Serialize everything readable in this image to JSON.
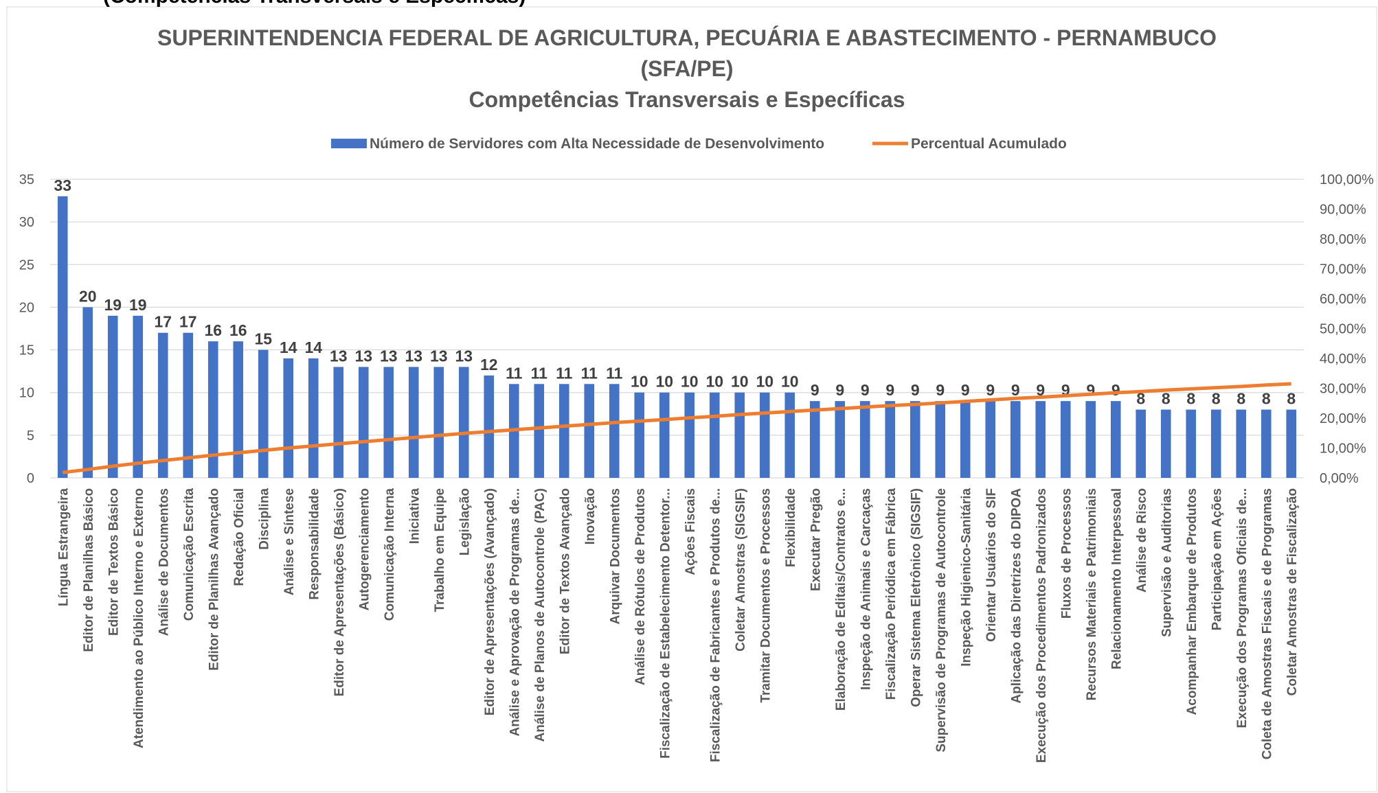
{
  "heading": "(Competências Transversais e Específicas)",
  "chart_data": {
    "type": "bar_line",
    "title_lines": [
      "SUPERINTENDENCIA FEDERAL DE AGRICULTURA, PECUÁRIA E ABASTECIMENTO - PERNAMBUCO",
      "(SFA/PE)",
      "Competências Transversais e Específicas"
    ],
    "categories": [
      "Língua Estrangeira",
      "Editor de Planilhas Básico",
      "Editor de Textos Básico",
      "Atendimento ao Público Interno e Externo",
      "Análise de Documentos",
      "Comunicação Escrita",
      "Editor de Planilhas Avançado",
      "Redação Oficial",
      "Disciplina",
      "Análise e Síntese",
      "Responsabilidade",
      "Editor de Apresentações (Básico)",
      "Autogerenciamento",
      "Comunicação Interna",
      "Iniciativa",
      "Trabalho em Equipe",
      "Legislação",
      "Editor de Apresentações (Avançado)",
      "Análise e Aprovação de Programas de...",
      "Análise de Planos de Autocontrole (PAC)",
      "Editor de Textos Avançado",
      "Inovação",
      "Arquivar Documentos",
      "Análise de Rótulos de Produtos",
      "Fiscalização de Estabelecimento Detentor...",
      "Ações Fiscais",
      "Fiscalização de Fabricantes e Produtos de...",
      "Coletar Amostras (SIGSIF)",
      "Tramitar Documentos e Processos",
      "Flexibilidade",
      "Executar Pregão",
      "Elaboração de Editais/Contratos e...",
      "Inspeção de Animais e Carcaças",
      "Fiscalização Periódica em Fábrica",
      "Operar Sistema Eletrônico (SIGSIF)",
      "Supervisão de Programas de Autocontrole",
      "Inspeção Higienico-Sanitária",
      "Orientar Usuários do SIF",
      "Aplicação das Diretrizes do DIPOA",
      "Execução dos Procedimentos Padronizados",
      "Fluxos de Processos",
      "Recursos Materiais e Patrimoniais",
      "Relacionamento Interpessoal",
      "Análise de Risco",
      "Supervisão e Auditorias",
      "Acompanhar Embarque de Produtos",
      "Participação em Ações",
      "Execução dos Programas Oficiais de...",
      "Coleta de Amostras Fiscais e de Programas",
      "Coletar Amostras de Fiscalização"
    ],
    "series": [
      {
        "name": "Número de Servidores com Alta Necessidade de Desenvolvimento",
        "type": "bar",
        "color": "#4472c4",
        "values": [
          33,
          20,
          19,
          19,
          17,
          17,
          16,
          16,
          15,
          14,
          14,
          13,
          13,
          13,
          13,
          13,
          13,
          12,
          11,
          11,
          11,
          11,
          11,
          10,
          10,
          10,
          10,
          10,
          10,
          10,
          9,
          9,
          9,
          9,
          9,
          9,
          9,
          9,
          9,
          9,
          9,
          9,
          9,
          8,
          8,
          8,
          8,
          8,
          8,
          8
        ]
      },
      {
        "name": "Percentual Acumulado",
        "type": "line",
        "axis": "y2",
        "color": "#ed7d31",
        "values": [
          1.8,
          2.8,
          3.9,
          4.9,
          5.8,
          6.7,
          7.6,
          8.4,
          9.2,
          10.0,
          10.7,
          11.4,
          12.1,
          12.8,
          13.5,
          14.2,
          14.9,
          15.5,
          16.1,
          16.7,
          17.3,
          17.9,
          18.5,
          19.0,
          19.5,
          20.1,
          20.6,
          21.2,
          21.7,
          22.2,
          22.7,
          23.2,
          23.7,
          24.2,
          24.6,
          25.1,
          25.6,
          26.1,
          26.6,
          27.0,
          27.5,
          28.0,
          28.5,
          28.9,
          29.4,
          29.8,
          30.2,
          30.6,
          31.1,
          31.5
        ]
      }
    ],
    "ylim": [
      0,
      35
    ],
    "yticks": [
      0,
      5,
      10,
      15,
      20,
      25,
      30,
      35
    ],
    "y2lim": [
      0,
      100
    ],
    "y2ticks": [
      {
        "value": 0,
        "label": "0,00%"
      },
      {
        "value": 10,
        "label": "10,00%"
      },
      {
        "value": 20,
        "label": "20,00%"
      },
      {
        "value": 30,
        "label": "30,00%"
      },
      {
        "value": 40,
        "label": "40,00%"
      },
      {
        "value": 50,
        "label": "50,00%"
      },
      {
        "value": 60,
        "label": "60,00%"
      },
      {
        "value": 70,
        "label": "70,00%"
      },
      {
        "value": 80,
        "label": "80,00%"
      },
      {
        "value": 90,
        "label": "90,00%"
      },
      {
        "value": 100,
        "label": "100,00%"
      }
    ],
    "grid": true,
    "legend": "top"
  }
}
